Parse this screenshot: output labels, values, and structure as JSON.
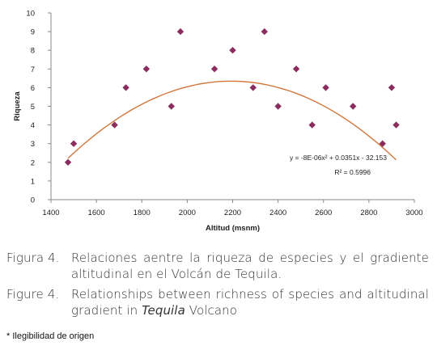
{
  "chart_data": {
    "type": "scatter",
    "title": "",
    "xlabel": "Altitud (msnm)",
    "ylabel": "Riqueza",
    "xlim": [
      1400,
      3000
    ],
    "ylim": [
      0,
      10
    ],
    "xticks": [
      1400,
      1600,
      1800,
      2000,
      2200,
      2400,
      2600,
      2800,
      3000
    ],
    "yticks": [
      0,
      1,
      2,
      3,
      4,
      5,
      6,
      7,
      8,
      9,
      10
    ],
    "grid": false,
    "legend": "none",
    "marker_color": "#8B2C5F",
    "trend_color": "#D2763C",
    "points": [
      {
        "x": 1475,
        "y": 2
      },
      {
        "x": 1500,
        "y": 3
      },
      {
        "x": 1680,
        "y": 4
      },
      {
        "x": 1730,
        "y": 6
      },
      {
        "x": 1820,
        "y": 7
      },
      {
        "x": 1930,
        "y": 5
      },
      {
        "x": 1970,
        "y": 9
      },
      {
        "x": 2120,
        "y": 7
      },
      {
        "x": 2200,
        "y": 8
      },
      {
        "x": 2290,
        "y": 6
      },
      {
        "x": 2340,
        "y": 9
      },
      {
        "x": 2400,
        "y": 5
      },
      {
        "x": 2480,
        "y": 7
      },
      {
        "x": 2550,
        "y": 4
      },
      {
        "x": 2610,
        "y": 6
      },
      {
        "x": 2730,
        "y": 5
      },
      {
        "x": 2860,
        "y": 3
      },
      {
        "x": 2900,
        "y": 6
      },
      {
        "x": 2920,
        "y": 4
      }
    ],
    "trendline": {
      "type": "polynomial",
      "coefficients": [
        -8e-06,
        0.0351,
        -32.153
      ],
      "x_range": [
        1475,
        2920
      ],
      "equation": "y = -8E-06x² + 0.0351x - 32.153",
      "r_squared": "R² = 0.5996"
    }
  },
  "caption_es": {
    "label": "Figura 4.",
    "text": "Relaciones aentre la riqueza de especies y el gradiente altitudinal en el Volcán de Tequila."
  },
  "caption_en": {
    "label": "Figure 4.",
    "text_before": "Relationships between richness of species and altitudinal gradient in ",
    "text_italic": "Tequila",
    "text_after": " Volcano"
  },
  "footnote": "* Ilegibilidad de origen"
}
